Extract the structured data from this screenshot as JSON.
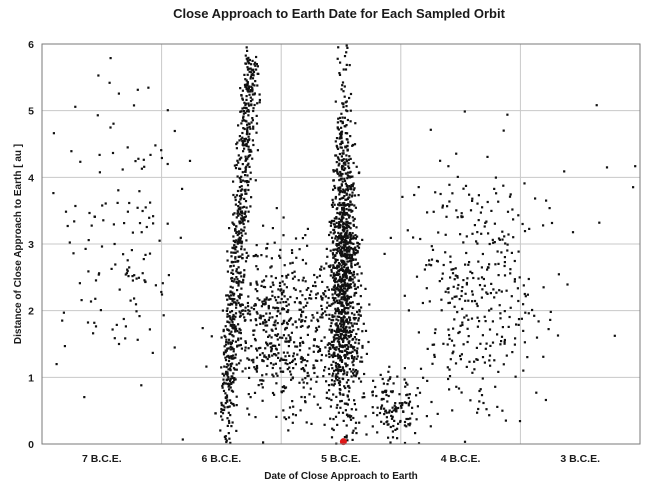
{
  "chart_data": {
    "type": "scatter",
    "title": "Close Approach to Earth Date for Each Sampled Orbit",
    "xlabel": "Date of Close Approach to Earth",
    "ylabel": "Distance of Close Approach to Earth [ au ]",
    "x_categories": [
      "7 B.C.E.",
      "6 B.C.E.",
      "5 B.C.E.",
      "4 B.C.E.",
      "3 B.C.E."
    ],
    "xlim_years": [
      -7.5,
      -2.5
    ],
    "ylim": [
      0,
      6
    ],
    "yticks": [
      0,
      1,
      2,
      3,
      4,
      5,
      6
    ],
    "grid": true,
    "legend": "none",
    "highlight_point": {
      "x_year": -4.98,
      "y": 0.02,
      "color": "#e01818"
    },
    "point_color": "#111111",
    "clusters": [
      {
        "note": "7 B.C.E. scattered band",
        "x_center": -6.85,
        "x_spread": 0.28,
        "y_center": 3.2,
        "y_spread": 1.2,
        "count": 140
      },
      {
        "note": "6 B.C.E. rising streak",
        "x_center": -5.85,
        "x_spread": 0.06,
        "y_center": 2.6,
        "y_spread": 1.3,
        "count": 650
      },
      {
        "note": "6 B.C.E. broad cloud",
        "x_center": -5.45,
        "x_spread": 0.25,
        "y_center": 1.7,
        "y_spread": 0.65,
        "count": 620
      },
      {
        "note": "5 B.C.E. narrow spike",
        "x_center": -4.97,
        "x_spread": 0.05,
        "y_center": 2.6,
        "y_spread": 1.1,
        "count": 1200
      },
      {
        "note": "late 5 B.C.E. low cluster",
        "x_center": -4.55,
        "x_spread": 0.13,
        "y_center": 0.55,
        "y_spread": 0.25,
        "count": 140
      },
      {
        "note": "4 B.C.E. scattered band",
        "x_center": -3.85,
        "x_spread": 0.28,
        "y_center": 2.4,
        "y_spread": 0.95,
        "count": 360
      },
      {
        "note": "3 B.C.E. sparse",
        "x_center": -2.95,
        "x_spread": 0.25,
        "y_center": 3.3,
        "y_spread": 1.3,
        "count": 12
      }
    ]
  }
}
